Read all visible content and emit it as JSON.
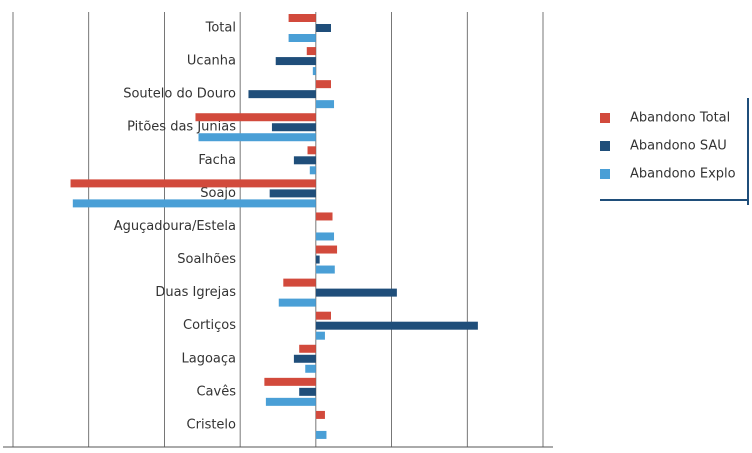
{
  "chart_data": {
    "type": "bar",
    "orientation": "horizontal",
    "categories": [
      "Total",
      "Ucanha",
      "Soutelo do Douro",
      "Pitões das Junias",
      "Facha",
      "Soajo",
      "Aguçadoura/Estela",
      "Soalhões",
      "Duas Igrejas",
      "Cortiços",
      "Lagoaça",
      "Cavês",
      "Cristelo"
    ],
    "series": [
      {
        "name": "Abandono Total",
        "color": "#d24a3c",
        "values": [
          -3.6,
          -1.2,
          2.0,
          -15.9,
          -1.1,
          -32.4,
          2.2,
          2.8,
          -4.3,
          2.0,
          -2.2,
          -6.8,
          1.2
        ]
      },
      {
        "name": "Abandono SAU",
        "color": "#1f4e7a",
        "values": [
          2.0,
          -5.3,
          -8.9,
          -5.8,
          -2.9,
          -6.1,
          0,
          0.5,
          10.7,
          21.4,
          -2.9,
          -2.2,
          0
        ]
      },
      {
        "name": "Abandono Explo",
        "color": "#4a9fd6",
        "values": [
          -3.6,
          -0.4,
          2.4,
          -15.5,
          -0.8,
          -32.1,
          2.4,
          2.5,
          -4.9,
          1.2,
          -1.4,
          -6.6,
          1.4
        ]
      }
    ],
    "xlim": [
      -40,
      30
    ],
    "xticks": [
      -40,
      -30,
      -20,
      -10,
      0,
      10,
      20,
      30
    ],
    "grid": true,
    "legend": "right"
  }
}
